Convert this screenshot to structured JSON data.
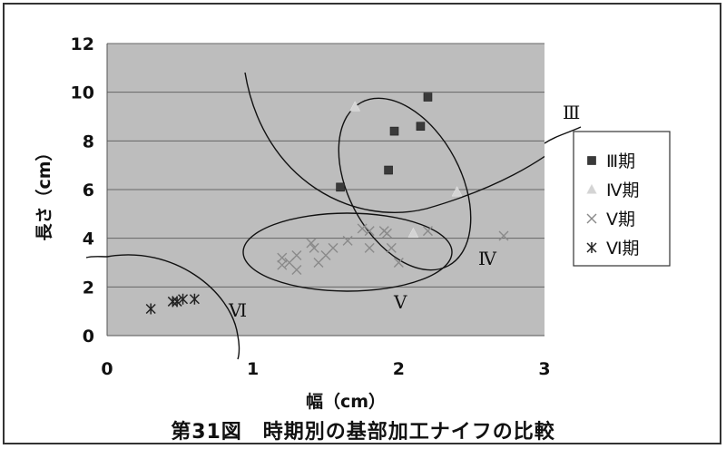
{
  "caption": "第31図　時期別の基部加工ナイフの比較",
  "chart_data": {
    "type": "scatter",
    "xlabel": "幅（cm）",
    "ylabel": "長さ（cm）",
    "xlim": [
      0,
      3
    ],
    "ylim": [
      0,
      12
    ],
    "xticks": [
      "0",
      "1",
      "2",
      "3"
    ],
    "yticks": [
      "0",
      "2",
      "4",
      "6",
      "8",
      "10",
      "12"
    ],
    "grid": "horizontal",
    "legend_position": "right",
    "series": [
      {
        "name": "Ⅲ期",
        "marker": "square",
        "color": "#3a3a3a",
        "points": [
          [
            1.6,
            6.1
          ],
          [
            1.93,
            6.8
          ],
          [
            1.97,
            8.4
          ],
          [
            2.15,
            8.6
          ],
          [
            2.2,
            9.8
          ]
        ]
      },
      {
        "name": "Ⅳ期",
        "marker": "triangle",
        "color": "#d4d4d4",
        "points": [
          [
            1.7,
            9.4
          ],
          [
            2.1,
            4.2
          ],
          [
            2.4,
            5.9
          ]
        ]
      },
      {
        "name": "Ⅴ期",
        "marker": "x",
        "color": "#8a8a8a",
        "points": [
          [
            1.2,
            2.9
          ],
          [
            1.2,
            3.2
          ],
          [
            1.25,
            3.0
          ],
          [
            1.3,
            2.7
          ],
          [
            1.3,
            3.3
          ],
          [
            1.4,
            3.8
          ],
          [
            1.42,
            3.6
          ],
          [
            1.45,
            3.0
          ],
          [
            1.5,
            3.3
          ],
          [
            1.55,
            3.6
          ],
          [
            1.65,
            3.9
          ],
          [
            1.75,
            4.4
          ],
          [
            1.8,
            4.3
          ],
          [
            1.8,
            3.6
          ],
          [
            1.9,
            4.3
          ],
          [
            1.92,
            4.2
          ],
          [
            1.95,
            3.6
          ],
          [
            2.0,
            3.0
          ],
          [
            2.2,
            4.3
          ],
          [
            2.72,
            4.1
          ]
        ]
      },
      {
        "name": "Ⅵ期",
        "marker": "asterisk",
        "color": "#222222",
        "points": [
          [
            0.3,
            1.1
          ],
          [
            0.45,
            1.4
          ],
          [
            0.48,
            1.4
          ],
          [
            0.52,
            1.5
          ],
          [
            0.6,
            1.5
          ]
        ]
      }
    ],
    "annotations": [
      {
        "label": "Ⅲ"
      },
      {
        "label": "Ⅳ"
      },
      {
        "label": "Ⅴ"
      },
      {
        "label": "Ⅵ"
      }
    ]
  }
}
